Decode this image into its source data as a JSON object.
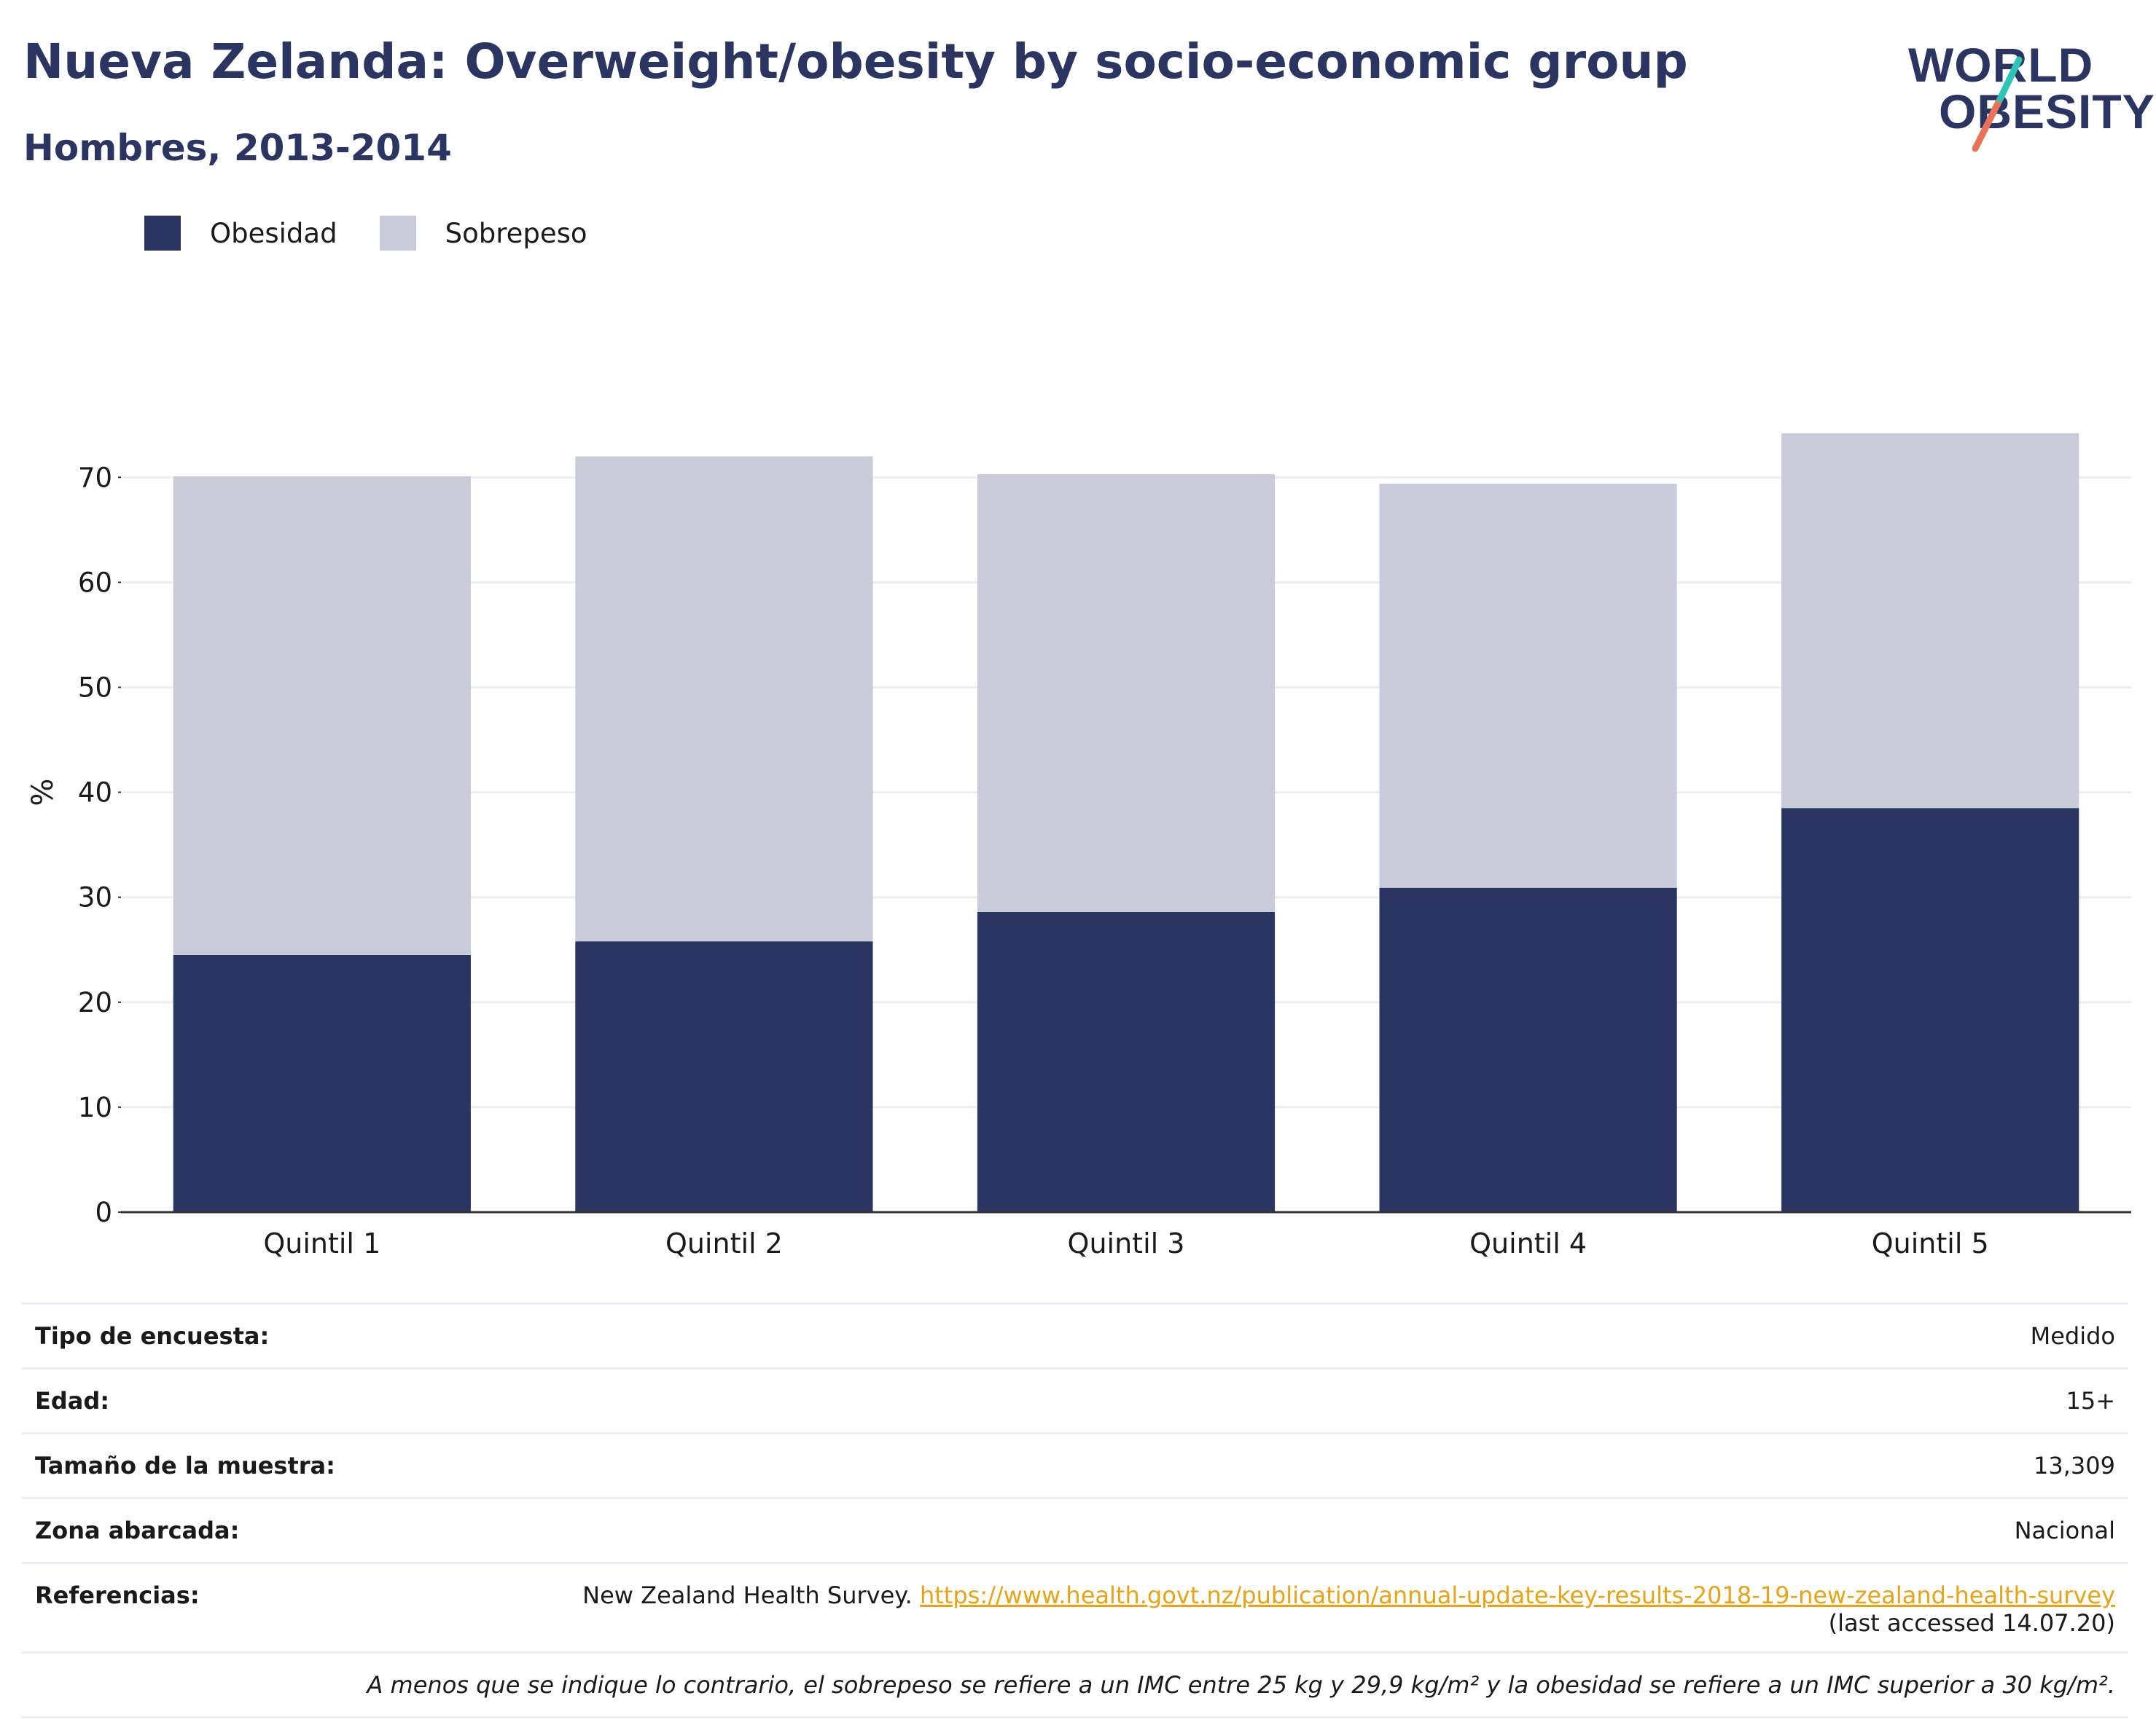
{
  "header": {
    "title": "Nueva Zelanda: Overweight/obesity by socio-economic group",
    "subtitle": "Hombres, 2013-2014"
  },
  "logo": {
    "line1": "WORLD",
    "line2": "OBESITY",
    "accent_colors": [
      "#2ec4b6",
      "#e8735a"
    ]
  },
  "chart_data": {
    "type": "bar",
    "stacked": true,
    "categories": [
      "Quintil 1",
      "Quintil 2",
      "Quintil 3",
      "Quintil 4",
      "Quintil 5"
    ],
    "series": [
      {
        "name": "Obesidad",
        "color": "#2b3561",
        "values": [
          24.5,
          25.8,
          28.6,
          30.9,
          38.5
        ]
      },
      {
        "name": "Sobrepeso",
        "color": "#c9ccd8",
        "values": [
          45.6,
          46.2,
          41.7,
          38.5,
          35.7
        ]
      }
    ],
    "xlabel": "",
    "ylabel": "%",
    "ylim": [
      0,
      78
    ],
    "yticks": [
      0,
      10,
      20,
      30,
      40,
      50,
      60,
      70
    ],
    "grid": true,
    "legend_position": "top-left"
  },
  "info": {
    "rows": [
      {
        "key": "Tipo de encuesta:",
        "value": "Medido"
      },
      {
        "key": "Edad:",
        "value": "15+"
      },
      {
        "key": "Tamaño de la muestra:",
        "value": "13,309"
      },
      {
        "key": "Zona abarcada:",
        "value": "Nacional"
      }
    ],
    "references": {
      "key": "Referencias:",
      "text": "New Zealand Health Survey.",
      "link": "https://www.health.govt.nz/publication/annual-update-key-results-2018-19-new-zealand-health-survey",
      "accessed": "(last accessed 14.07.20)"
    },
    "note": "A menos que se indique lo contrario, el sobrepeso se refiere a un IMC entre 25 kg y 29,9 kg/m² y la obesidad se refiere a un IMC superior a 30 kg/m²."
  }
}
